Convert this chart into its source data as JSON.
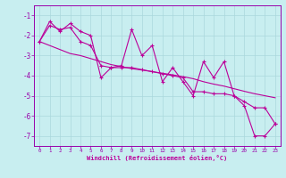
{
  "xlabel": "Windchill (Refroidissement éolien,°C)",
  "bg_color": "#c8eef0",
  "line_color": "#bb0099",
  "grid_color": "#aad8dc",
  "axis_color": "#9900aa",
  "x": [
    0,
    1,
    2,
    3,
    4,
    5,
    6,
    7,
    8,
    9,
    10,
    11,
    12,
    13,
    14,
    15,
    16,
    17,
    18,
    19,
    20,
    21,
    22,
    23
  ],
  "y_jagged": [
    -2.3,
    -1.3,
    -1.8,
    -1.4,
    -1.8,
    -2.0,
    -4.1,
    -3.6,
    -3.5,
    -1.7,
    -3.0,
    -2.5,
    -4.3,
    -3.6,
    -4.3,
    -5.0,
    -3.3,
    -4.1,
    -3.3,
    -5.0,
    -5.5,
    -7.0,
    -7.0,
    -6.4
  ],
  "y_smooth1": [
    -2.3,
    -1.5,
    -1.7,
    -1.6,
    -2.3,
    -2.5,
    -3.5,
    -3.6,
    -3.6,
    -3.6,
    -3.7,
    -3.8,
    -3.9,
    -4.0,
    -4.1,
    -4.8,
    -4.8,
    -4.9,
    -4.9,
    -5.0,
    -5.3,
    -5.6,
    -5.6,
    -6.4
  ],
  "y_linear": [
    -2.3,
    -2.5,
    -2.7,
    -2.9,
    -3.0,
    -3.15,
    -3.3,
    -3.45,
    -3.55,
    -3.65,
    -3.72,
    -3.8,
    -3.88,
    -3.96,
    -4.05,
    -4.15,
    -4.3,
    -4.42,
    -4.52,
    -4.65,
    -4.78,
    -4.9,
    -5.0,
    -5.1
  ],
  "xlim": [
    -0.5,
    23.5
  ],
  "ylim": [
    -7.5,
    -0.5
  ],
  "yticks": [
    -7,
    -6,
    -5,
    -4,
    -3,
    -2,
    -1
  ],
  "xticks": [
    0,
    1,
    2,
    3,
    4,
    5,
    6,
    7,
    8,
    9,
    10,
    11,
    12,
    13,
    14,
    15,
    16,
    17,
    18,
    19,
    20,
    21,
    22,
    23
  ]
}
